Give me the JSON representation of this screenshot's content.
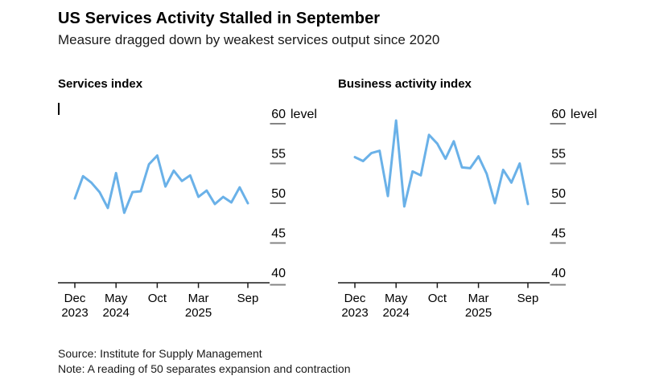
{
  "header": {
    "title": "US Services Activity Stalled in September",
    "subtitle": "Measure dragged down by weakest services output since 2020"
  },
  "footer": {
    "source": "Source: Institute for Supply Management",
    "note": "Note: A reading of 50 separates expansion and contraction"
  },
  "colors": {
    "line": "#6ab1e8",
    "axis": "#1a1a1a",
    "ytick_dash": "#848484",
    "text": "#000000"
  },
  "chart_data": [
    {
      "type": "line",
      "title": "Services index",
      "ylabel": "level",
      "unit_label": "level",
      "ylim": [
        40,
        60
      ],
      "yticks": [
        60,
        55,
        50,
        45,
        40
      ],
      "grid": false,
      "legend": "none",
      "x": [
        "Dec 2023",
        "Jan 2024",
        "Feb 2024",
        "Mar 2024",
        "Apr 2024",
        "May 2024",
        "Jun 2024",
        "Jul 2024",
        "Aug 2024",
        "Sep 2024",
        "Oct 2024",
        "Nov 2024",
        "Dec 2024",
        "Jan 2025",
        "Feb 2025",
        "Mar 2025",
        "Apr 2025",
        "May 2025",
        "Jun 2025",
        "Jul 2025",
        "Aug 2025",
        "Sep 2025"
      ],
      "values": [
        50.6,
        53.4,
        52.6,
        51.4,
        49.4,
        53.8,
        48.8,
        51.4,
        51.5,
        54.9,
        56.0,
        52.1,
        54.1,
        52.8,
        53.5,
        50.8,
        51.6,
        49.9,
        50.8,
        50.1,
        52.0,
        50.0
      ],
      "xticks": [
        {
          "month_index": 0,
          "line1": "Dec",
          "line2": "2023"
        },
        {
          "month_index": 5,
          "line1": "May",
          "line2": "2024"
        },
        {
          "month_index": 10,
          "line1": "Oct",
          "line2": ""
        },
        {
          "month_index": 15,
          "line1": "Mar",
          "line2": "2025"
        },
        {
          "month_index": 21,
          "line1": "Sep",
          "line2": ""
        }
      ]
    },
    {
      "type": "line",
      "title": "Business activity index",
      "ylabel": "level",
      "unit_label": "level",
      "ylim": [
        40,
        60
      ],
      "yticks": [
        60,
        55,
        50,
        45,
        40
      ],
      "grid": false,
      "legend": "none",
      "x": [
        "Dec 2023",
        "Jan 2024",
        "Feb 2024",
        "Mar 2024",
        "Apr 2024",
        "May 2024",
        "Jun 2024",
        "Jul 2024",
        "Aug 2024",
        "Sep 2024",
        "Oct 2024",
        "Nov 2024",
        "Dec 2024",
        "Jan 2025",
        "Feb 2025",
        "Mar 2025",
        "Apr 2025",
        "May 2025",
        "Jun 2025",
        "Jul 2025",
        "Aug 2025",
        "Sep 2025"
      ],
      "values": [
        55.8,
        55.3,
        56.3,
        56.6,
        50.9,
        60.4,
        49.6,
        54.0,
        53.5,
        58.6,
        57.5,
        55.6,
        57.8,
        54.5,
        54.4,
        55.9,
        53.7,
        50.0,
        54.2,
        52.6,
        55.0,
        49.9
      ],
      "xticks": [
        {
          "month_index": 0,
          "line1": "Dec",
          "line2": "2023"
        },
        {
          "month_index": 5,
          "line1": "May",
          "line2": "2024"
        },
        {
          "month_index": 10,
          "line1": "Oct",
          "line2": ""
        },
        {
          "month_index": 15,
          "line1": "Mar",
          "line2": "2025"
        },
        {
          "month_index": 21,
          "line1": "Sep",
          "line2": ""
        }
      ]
    }
  ]
}
